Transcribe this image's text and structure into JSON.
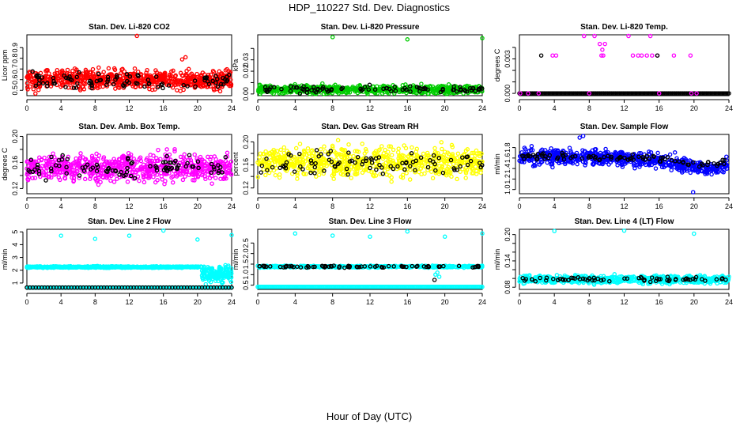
{
  "figure": {
    "title": "HDP_110227  Std. Dev. Diagnostics",
    "xlabel": "Hour of Day (UTC)"
  },
  "chart_data": [
    {
      "type": "scatter",
      "title": "Stan. Dev. Li-820 CO2",
      "ylabel": "Licor ppm",
      "xlim": [
        0,
        24
      ],
      "ylim": [
        0.45,
        1.02
      ],
      "xticks": [
        0,
        4,
        8,
        12,
        16,
        20,
        24
      ],
      "xtick_labels": [
        "0",
        "4",
        "8",
        "12",
        "16",
        "20",
        "24"
      ],
      "yticks": [
        0.5,
        0.6,
        0.7,
        0.8,
        0.9
      ],
      "ytick_labels": [
        "0.5",
        "0.6",
        "0.7",
        "0.8",
        "0.9"
      ],
      "series": [
        {
          "name": "main",
          "color": "#ff0000",
          "pattern": "noise",
          "count": 700,
          "center": 0.6,
          "spread": 0.06,
          "min": 0.48,
          "max": 0.84
        },
        {
          "name": "highlight",
          "color": "#000000",
          "pattern": "noise",
          "count": 90,
          "center": 0.59,
          "spread": 0.05,
          "min": 0.47,
          "max": 0.75
        },
        {
          "name": "outliers",
          "color": "#ff0000",
          "pattern": "points",
          "x": [
            12.9,
            1.0,
            18.6,
            18.2
          ],
          "y": [
            1.01,
            0.47,
            0.81,
            0.79
          ]
        }
      ]
    },
    {
      "type": "scatter",
      "title": "Stan. Dev. Li-820 Pressure",
      "ylabel": "kPa",
      "xlim": [
        0,
        24
      ],
      "ylim": [
        -0.0015,
        0.052
      ],
      "xticks": [
        0,
        4,
        8,
        12,
        16,
        20,
        24
      ],
      "xtick_labels": [
        "0",
        "4",
        "8",
        "12",
        "16",
        "20",
        "24"
      ],
      "yticks": [
        0.0,
        0.01,
        0.02,
        0.03,
        0.04
      ],
      "ytick_labels": [
        "0.00",
        "",
        "0.02",
        "0.03",
        ""
      ],
      "series": [
        {
          "name": "main",
          "color": "#00cc00",
          "pattern": "noise",
          "count": 700,
          "center": 0.004,
          "spread": 0.0025,
          "min": 0.0,
          "max": 0.01
        },
        {
          "name": "highlight",
          "color": "#000000",
          "pattern": "noise",
          "count": 90,
          "center": 0.004,
          "spread": 0.002,
          "min": 0.0,
          "max": 0.009
        },
        {
          "name": "outliers",
          "color": "#00cc00",
          "pattern": "points",
          "x": [
            8.0,
            16.0,
            24.0
          ],
          "y": [
            0.05,
            0.048,
            0.049
          ]
        }
      ]
    },
    {
      "type": "scatter",
      "title": "Stan. Dev. Li-820 Temp.",
      "ylabel": "degrees C",
      "xlim": [
        0,
        24
      ],
      "ylim": [
        -0.0002,
        0.0051
      ],
      "xticks": [
        0,
        4,
        8,
        12,
        16,
        20,
        24
      ],
      "xtick_labels": [
        "0",
        "4",
        "8",
        "12",
        "16",
        "20",
        "24"
      ],
      "yticks": [
        0.0,
        0.001,
        0.002,
        0.003,
        0.004
      ],
      "ytick_labels": [
        "0.000",
        "",
        "",
        "0.003",
        ""
      ],
      "series": [
        {
          "name": "zero",
          "color": "#000000",
          "pattern": "line",
          "count": 160,
          "value": 0.0
        },
        {
          "name": "zero-magenta",
          "color": "#ff00ff",
          "pattern": "points",
          "x": [
            0.1,
            1.0,
            2.2,
            8.0,
            16.0,
            19.7,
            20.3
          ],
          "y": [
            0.0,
            0.0,
            0.0,
            0.0,
            0.0,
            0.0,
            0.0
          ]
        },
        {
          "name": "high",
          "color": "#ff00ff",
          "pattern": "points",
          "x": [
            3.8,
            4.2,
            7.4,
            8.6,
            9.2,
            9.8,
            9.4,
            9.6,
            12.5,
            13.0,
            13.6,
            14.0,
            14.6,
            15.2,
            15.8,
            15.0,
            17.7,
            19.6,
            9.5
          ],
          "y": [
            0.0033,
            0.0033,
            0.005,
            0.005,
            0.0043,
            0.0043,
            0.0033,
            0.0033,
            0.005,
            0.0033,
            0.0033,
            0.0033,
            0.0033,
            0.0033,
            0.0033,
            0.005,
            0.0033,
            0.0033,
            0.0038
          ]
        },
        {
          "name": "high-black",
          "color": "#000000",
          "pattern": "points",
          "x": [
            2.5,
            15.8
          ],
          "y": [
            0.0033,
            0.0033
          ]
        }
      ]
    },
    {
      "type": "scatter",
      "title": "Stan. Dev. Amb. Box Temp.",
      "ylabel": "degrees C",
      "xlim": [
        0,
        24
      ],
      "ylim": [
        0.112,
        0.203
      ],
      "xticks": [
        0,
        4,
        8,
        12,
        16,
        20,
        24
      ],
      "xtick_labels": [
        "0",
        "4",
        "8",
        "12",
        "16",
        "20",
        "24"
      ],
      "yticks": [
        0.12,
        0.14,
        0.16,
        0.18,
        0.2
      ],
      "ytick_labels": [
        "0.12",
        "",
        "0.16",
        "",
        "0.20"
      ],
      "series": [
        {
          "name": "main",
          "color": "#ff00ff",
          "pattern": "noise",
          "count": 700,
          "center": 0.152,
          "spread": 0.014,
          "min": 0.116,
          "max": 0.195
        },
        {
          "name": "highlight",
          "color": "#000000",
          "pattern": "noise",
          "count": 90,
          "center": 0.152,
          "spread": 0.012,
          "min": 0.12,
          "max": 0.19
        }
      ]
    },
    {
      "type": "scatter",
      "title": "Stan. Dev. Gas Stream RH",
      "ylabel": "percent",
      "xlim": [
        0,
        24
      ],
      "ylim": [
        0.11,
        0.213
      ],
      "xticks": [
        0,
        4,
        8,
        12,
        16,
        20,
        24
      ],
      "xtick_labels": [
        "0",
        "4",
        "8",
        "12",
        "16",
        "20",
        "24"
      ],
      "yticks": [
        0.12,
        0.14,
        0.16,
        0.18,
        0.2
      ],
      "ytick_labels": [
        "0.12",
        "",
        "0.16",
        "",
        "0.20"
      ],
      "series": [
        {
          "name": "main",
          "color": "#ffff00",
          "pattern": "noise",
          "count": 700,
          "center": 0.165,
          "spread": 0.018,
          "min": 0.115,
          "max": 0.21
        },
        {
          "name": "highlight",
          "color": "#000000",
          "pattern": "noise",
          "count": 90,
          "center": 0.163,
          "spread": 0.013,
          "min": 0.13,
          "max": 0.2
        }
      ]
    },
    {
      "type": "scatter",
      "title": "Stan. Dev. Sample Flow",
      "ylabel": "ml/min",
      "xlim": [
        0,
        24
      ],
      "ylim": [
        0.92,
        2.05
      ],
      "xticks": [
        0,
        4,
        8,
        12,
        16,
        20,
        24
      ],
      "xtick_labels": [
        "0",
        "4",
        "8",
        "12",
        "16",
        "20",
        "24"
      ],
      "yticks": [
        1.0,
        1.2,
        1.4,
        1.6,
        1.8
      ],
      "ytick_labels": [
        "1.0",
        "1.2",
        "1.4",
        "1.6",
        "1.8"
      ],
      "series": [
        {
          "name": "main",
          "color": "#0000ff",
          "pattern": "noise",
          "count": 650,
          "center": 1.56,
          "spread": 0.1,
          "min": 1.1,
          "max": 2.0,
          "trend": [
            [
              0,
              1.62
            ],
            [
              10,
              1.62
            ],
            [
              16,
              1.55
            ],
            [
              20,
              1.42
            ],
            [
              22,
              1.38
            ],
            [
              24,
              1.48
            ]
          ]
        },
        {
          "name": "highlight",
          "color": "#000000",
          "pattern": "noise",
          "count": 90,
          "center": 1.57,
          "spread": 0.05,
          "min": 1.3,
          "max": 1.8,
          "trend": [
            [
              0,
              1.62
            ],
            [
              10,
              1.62
            ],
            [
              16,
              1.58
            ],
            [
              20,
              1.48
            ],
            [
              24,
              1.52
            ]
          ]
        },
        {
          "name": "outliers",
          "color": "#0000ff",
          "pattern": "points",
          "x": [
            7.3,
            19.9,
            6.9
          ],
          "y": [
            2.02,
            0.95,
            1.99
          ]
        }
      ]
    },
    {
      "type": "scatter",
      "title": "Stan. Dev. Line 2 Flow",
      "ylabel": "ml/min",
      "xlim": [
        0,
        24
      ],
      "ylim": [
        0.5,
        5.2
      ],
      "xticks": [
        0,
        4,
        8,
        12,
        16,
        20,
        24
      ],
      "xtick_labels": [
        "0",
        "4",
        "8",
        "12",
        "16",
        "20",
        "24"
      ],
      "yticks": [
        1,
        2,
        3,
        4,
        5
      ],
      "ytick_labels": [
        "1",
        "2",
        "3",
        "4",
        "5"
      ],
      "series": [
        {
          "name": "main",
          "color": "#00ffff",
          "pattern": "noise",
          "count": 600,
          "center": 2.25,
          "spread": 0.04,
          "min": 2.1,
          "max": 2.45,
          "xmax": 20.5
        },
        {
          "name": "tail",
          "color": "#00ffff",
          "pattern": "noise",
          "count": 160,
          "center": 1.7,
          "spread": 0.45,
          "min": 0.9,
          "max": 2.4,
          "xmin": 20.5,
          "xmax": 24
        },
        {
          "name": "base",
          "color": "#00ffff",
          "pattern": "line",
          "count": 160,
          "value": 0.65
        },
        {
          "name": "base-black",
          "color": "#000000",
          "pattern": "line",
          "count": 70,
          "value": 0.65
        },
        {
          "name": "outliers",
          "color": "#00ffff",
          "pattern": "points",
          "x": [
            4.0,
            8.0,
            12.0,
            16.0,
            20.0,
            24.0
          ],
          "y": [
            4.7,
            4.45,
            4.7,
            5.1,
            4.4,
            4.75
          ]
        }
      ]
    },
    {
      "type": "scatter",
      "title": "Stan. Dev. Line 3 Flow",
      "ylabel": "ml/min",
      "xlim": [
        0,
        24
      ],
      "ylim": [
        0.3,
        3.15
      ],
      "xticks": [
        0,
        4,
        8,
        12,
        16,
        20,
        24
      ],
      "xtick_labels": [
        "0",
        "4",
        "8",
        "12",
        "16",
        "20",
        "24"
      ],
      "yticks": [
        0.5,
        1.0,
        1.5,
        2.0,
        2.5
      ],
      "ytick_labels": [
        "0.5",
        "1.0",
        "1.5",
        "2.0",
        "2.5"
      ],
      "series": [
        {
          "name": "main",
          "color": "#00ffff",
          "pattern": "noise",
          "count": 500,
          "center": 1.38,
          "spread": 0.03,
          "min": 1.25,
          "max": 1.5
        },
        {
          "name": "highlight",
          "color": "#000000",
          "pattern": "noise",
          "count": 80,
          "center": 1.38,
          "spread": 0.03,
          "min": 1.25,
          "max": 1.5
        },
        {
          "name": "base",
          "color": "#00ffff",
          "pattern": "line",
          "count": 200,
          "value": 0.42
        },
        {
          "name": "outliers",
          "color": "#00ffff",
          "pattern": "points",
          "x": [
            4.0,
            8.0,
            12.0,
            16.0,
            20.0,
            24.0,
            19.0,
            19.2,
            19.4
          ],
          "y": [
            2.95,
            2.85,
            2.8,
            3.05,
            2.8,
            2.95,
            1.0,
            1.1,
            0.9
          ]
        },
        {
          "name": "outliers-black",
          "color": "#000000",
          "pattern": "points",
          "x": [
            18.9
          ],
          "y": [
            0.75
          ]
        }
      ]
    },
    {
      "type": "scatter",
      "title": "Stan. Dev. Line 4 (LT) Flow",
      "ylabel": "ml/min",
      "xlim": [
        0,
        24
      ],
      "ylim": [
        0.075,
        0.212
      ],
      "xticks": [
        0,
        4,
        8,
        12,
        16,
        20,
        24
      ],
      "xtick_labels": [
        "0",
        "4",
        "8",
        "12",
        "16",
        "20",
        "24"
      ],
      "yticks": [
        0.08,
        0.1,
        0.12,
        0.14,
        0.16,
        0.18,
        0.2
      ],
      "ytick_labels": [
        "0.08",
        "",
        "",
        "0.14",
        "",
        "",
        "0.20"
      ],
      "series": [
        {
          "name": "main",
          "color": "#00ffff",
          "pattern": "noise",
          "count": 700,
          "center": 0.098,
          "spread": 0.006,
          "min": 0.08,
          "max": 0.115
        },
        {
          "name": "highlight",
          "color": "#000000",
          "pattern": "noise",
          "count": 70,
          "center": 0.098,
          "spread": 0.004,
          "min": 0.088,
          "max": 0.11
        },
        {
          "name": "outliers",
          "color": "#00ffff",
          "pattern": "points",
          "x": [
            4.0,
            12.0,
            20.0
          ],
          "y": [
            0.208,
            0.209,
            0.202
          ]
        }
      ]
    }
  ]
}
